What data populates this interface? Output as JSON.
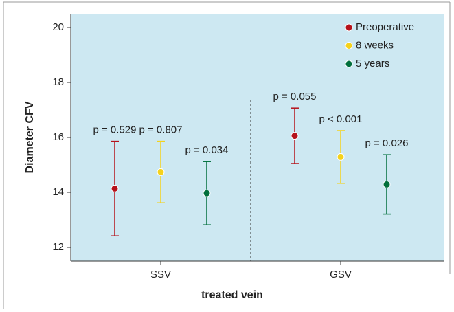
{
  "chart_data": {
    "type": "errorbar",
    "categories": [
      "SSV",
      "GSV"
    ],
    "x_label": "treated vein",
    "y_label": "Diameter CFV",
    "ylim": [
      11.5,
      20.5
    ],
    "yticks": [
      12,
      14,
      16,
      18,
      20
    ],
    "legend": "upper right",
    "series": [
      {
        "name": "Preoperative",
        "color": "#b5121b",
        "values": [
          14.14,
          16.06
        ],
        "errors": [
          1.72,
          1.01
        ],
        "annotations": [
          "p = 0.529",
          "p = 0.055"
        ]
      },
      {
        "name": "8 weeks",
        "color": "#f5d21c",
        "values": [
          14.74,
          15.29
        ],
        "errors": [
          1.12,
          0.96
        ],
        "annotations": [
          "p = 0.807",
          "p < 0.001"
        ]
      },
      {
        "name": "5 years",
        "color": "#006f3c",
        "values": [
          13.97,
          14.29
        ],
        "errors": [
          1.15,
          1.08
        ],
        "annotations": [
          "p = 0.034",
          "p = 0.026"
        ]
      }
    ]
  }
}
